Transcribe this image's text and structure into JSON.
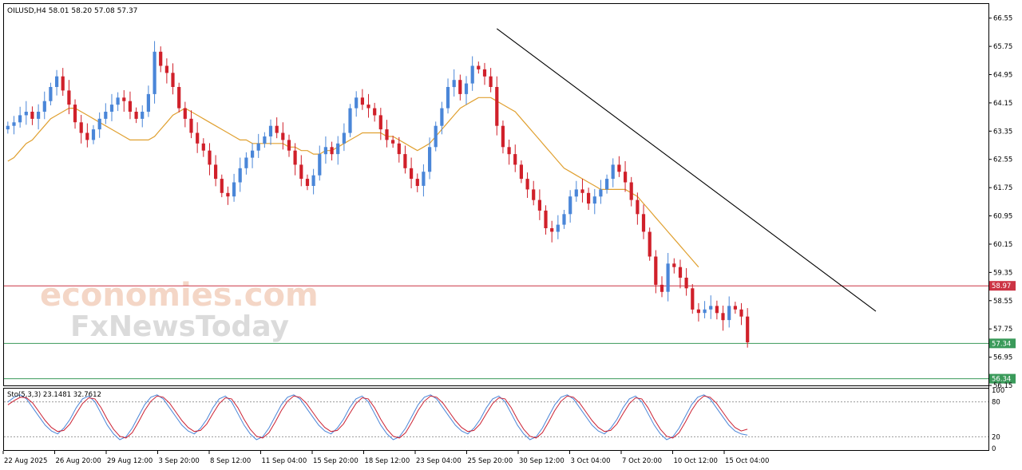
{
  "symbol_header": "OILUSD,H4  58.01 58.20 57.08 57.37",
  "watermark": {
    "line1": "economies.com",
    "line2": "FxNewsToday"
  },
  "colors": {
    "bull": "#4a86d8",
    "bear": "#d0202a",
    "ma": "#e0a030",
    "trendline": "#000000",
    "resistance": "#cc3344",
    "support": "#3a9a5a",
    "stoch_main": "#4a86d8",
    "stoch_signal": "#cc2233",
    "grid_frame": "#000000"
  },
  "chart_data": [
    {
      "type": "candlestick",
      "symbol": "OILUSD",
      "timeframe": "H4",
      "ohlc_last": {
        "open": 58.01,
        "high": 58.2,
        "low": 57.08,
        "close": 57.37
      },
      "y_ticks": [
        "66.55",
        "65.75",
        "64.95",
        "64.15",
        "63.35",
        "62.55",
        "61.75",
        "60.95",
        "60.15",
        "59.35",
        "58.55",
        "57.75",
        "56.95",
        "56.15"
      ],
      "ylim": [
        56.15,
        66.95
      ],
      "x_labels": [
        "22 Aug 2025",
        "26 Aug 20:00",
        "29 Aug 12:00",
        "3 Sep 20:00",
        "8 Sep 12:00",
        "11 Sep 04:00",
        "15 Sep 20:00",
        "18 Sep 12:00",
        "23 Sep 04:00",
        "25 Sep 20:00",
        "30 Sep 12:00",
        "3 Oct 04:00",
        "7 Oct 20:00",
        "10 Oct 12:00",
        "15 Oct 04:00"
      ],
      "closes": [
        63.5,
        63.6,
        63.8,
        63.9,
        63.7,
        63.9,
        64.2,
        64.6,
        64.9,
        64.5,
        64.1,
        63.6,
        63.3,
        63.1,
        63.4,
        63.7,
        63.9,
        64.1,
        64.3,
        64.2,
        63.9,
        63.7,
        63.9,
        64.4,
        65.6,
        65.2,
        65.0,
        64.6,
        64.0,
        63.7,
        63.3,
        63.0,
        62.8,
        62.4,
        62.0,
        61.6,
        61.5,
        61.9,
        62.3,
        62.6,
        62.8,
        63.0,
        63.2,
        63.5,
        63.3,
        63.1,
        62.8,
        62.4,
        62.0,
        61.8,
        62.1,
        62.7,
        62.9,
        62.7,
        63.0,
        63.3,
        64.0,
        64.3,
        64.1,
        64.0,
        63.8,
        63.4,
        63.1,
        63.0,
        62.7,
        62.3,
        62.0,
        61.8,
        62.2,
        62.9,
        63.5,
        64.0,
        64.6,
        64.8,
        64.4,
        64.7,
        65.2,
        65.1,
        64.9,
        64.6,
        63.5,
        62.9,
        62.7,
        62.4,
        62.0,
        61.7,
        61.4,
        61.1,
        60.6,
        60.5,
        60.7,
        61.0,
        61.5,
        61.7,
        61.6,
        61.3,
        61.5,
        61.7,
        62.0,
        62.4,
        62.2,
        61.9,
        61.4,
        61.0,
        60.5,
        59.8,
        59.0,
        58.8,
        59.6,
        59.5,
        59.2,
        58.9,
        58.3,
        58.2,
        58.3,
        58.4,
        58.2,
        58.0,
        58.4,
        58.3,
        58.1,
        57.37
      ],
      "ma_series": [
        62.5,
        62.6,
        62.8,
        63.0,
        63.1,
        63.3,
        63.5,
        63.7,
        63.8,
        63.9,
        64.0,
        64.0,
        63.9,
        63.8,
        63.7,
        63.6,
        63.5,
        63.4,
        63.3,
        63.2,
        63.1,
        63.1,
        63.1,
        63.1,
        63.2,
        63.4,
        63.6,
        63.8,
        63.9,
        64.0,
        63.9,
        63.8,
        63.7,
        63.6,
        63.5,
        63.4,
        63.3,
        63.2,
        63.1,
        63.1,
        63.0,
        63.0,
        63.0,
        63.0,
        63.0,
        63.0,
        62.9,
        62.9,
        62.8,
        62.8,
        62.7,
        62.7,
        62.8,
        62.8,
        62.9,
        63.0,
        63.1,
        63.2,
        63.3,
        63.3,
        63.3,
        63.3,
        63.2,
        63.2,
        63.1,
        63.0,
        62.9,
        62.8,
        62.9,
        63.0,
        63.2,
        63.4,
        63.6,
        63.8,
        64.0,
        64.1,
        64.2,
        64.3,
        64.3,
        64.3,
        64.2,
        64.1,
        64.0,
        63.9,
        63.7,
        63.5,
        63.3,
        63.1,
        62.9,
        62.7,
        62.5,
        62.3,
        62.2,
        62.1,
        62.0,
        61.9,
        61.8,
        61.7,
        61.7,
        61.7,
        61.7,
        61.7,
        61.6,
        61.5,
        61.3,
        61.1,
        60.9,
        60.7,
        60.5,
        60.3,
        60.1,
        59.9,
        59.7,
        59.5
      ],
      "horizontal_levels": [
        {
          "value": 58.97,
          "label": "58.97",
          "color": "#cc3344"
        },
        {
          "value": 57.34,
          "label": "57.34",
          "color": "#3a9a5a"
        },
        {
          "value": 56.34,
          "label": "56.34",
          "color": "#3a9a5a"
        }
      ],
      "trendline": {
        "from": {
          "index": 80,
          "value": 66.25
        },
        "to": {
          "index": 142,
          "value": 58.25
        }
      }
    },
    {
      "type": "line",
      "indicator_label": "Sto(5,3,3) 23.1481 32.7612",
      "y_ticks": [
        "100",
        "80",
        "20",
        "0"
      ],
      "ylim": [
        0,
        100
      ],
      "levels": [
        80,
        20
      ],
      "series": [
        {
          "values": [
            80,
            88,
            92,
            85,
            70,
            55,
            40,
            30,
            25,
            35,
            50,
            70,
            85,
            90,
            80,
            60,
            40,
            25,
            15,
            20,
            35,
            55,
            75,
            88,
            92,
            85,
            70,
            55,
            40,
            30,
            25,
            35,
            50,
            70,
            85,
            90,
            80,
            60,
            40,
            25,
            15,
            20,
            35,
            55,
            75,
            88,
            92,
            85,
            70,
            55,
            40,
            30,
            25,
            35,
            50,
            70,
            85,
            90,
            80,
            60,
            40,
            25,
            15,
            20,
            35,
            55,
            75,
            88,
            92,
            85,
            70,
            55,
            40,
            30,
            25,
            35,
            50,
            70,
            85,
            90,
            80,
            60,
            40,
            25,
            15,
            20,
            35,
            55,
            75,
            88,
            92,
            85,
            70,
            55,
            40,
            30,
            25,
            35,
            50,
            70,
            85,
            90,
            80,
            60,
            40,
            25,
            15,
            20,
            35,
            55,
            75,
            88,
            92,
            85,
            70,
            55,
            40,
            30,
            25,
            23
          ]
        },
        {
          "values": [
            75,
            82,
            88,
            87,
            78,
            63,
            48,
            36,
            29,
            31,
            42,
            60,
            77,
            87,
            85,
            70,
            50,
            33,
            21,
            18,
            27,
            45,
            65,
            81,
            90,
            88,
            78,
            63,
            48,
            36,
            29,
            31,
            42,
            60,
            77,
            87,
            85,
            70,
            50,
            33,
            21,
            18,
            27,
            45,
            65,
            81,
            90,
            88,
            78,
            63,
            48,
            36,
            29,
            31,
            42,
            60,
            77,
            87,
            85,
            70,
            50,
            33,
            21,
            18,
            27,
            45,
            65,
            81,
            90,
            88,
            78,
            63,
            48,
            36,
            29,
            31,
            42,
            60,
            77,
            87,
            85,
            70,
            50,
            33,
            21,
            18,
            27,
            45,
            65,
            81,
            90,
            88,
            78,
            63,
            48,
            36,
            29,
            31,
            42,
            60,
            77,
            87,
            85,
            70,
            50,
            33,
            21,
            18,
            27,
            45,
            65,
            81,
            90,
            88,
            78,
            63,
            48,
            36,
            30,
            33
          ]
        }
      ]
    }
  ]
}
